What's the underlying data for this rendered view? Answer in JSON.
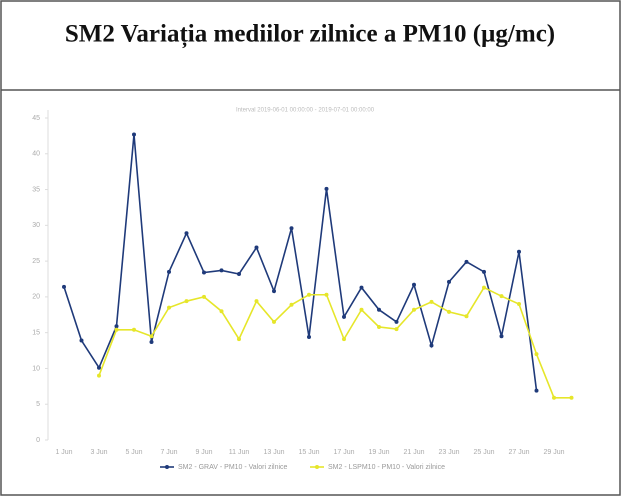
{
  "chart_data": {
    "type": "line",
    "title": "SM2 Variația mediilor zilnice a PM10 (µg/mc)",
    "subtitle": "Interval 2019-06-01 00:00:00 - 2019-07-01 00:00:00",
    "categories": [
      "1 Jun",
      null,
      "3 Jun",
      null,
      "5 Jun",
      null,
      "7 Jun",
      null,
      "9 Jun",
      null,
      "11 Jun",
      null,
      "13 Jun",
      null,
      "15 Jun",
      null,
      "17 Jun",
      null,
      "19 Jun",
      null,
      "21 Jun",
      null,
      "23 Jun",
      null,
      "25 Jun",
      null,
      "27 Jun",
      null,
      "29 Jun",
      null
    ],
    "series": [
      {
        "name": "SM2 - GRAV - PM10 - Valori zilnice",
        "color": "#1f3a7a",
        "values": [
          21.4,
          13.9,
          10.1,
          15.9,
          42.7,
          13.7,
          23.5,
          28.9,
          23.4,
          23.7,
          23.2,
          26.9,
          20.8,
          29.6,
          14.4,
          35.1,
          17.2,
          21.3,
          18.2,
          16.5,
          21.7,
          13.2,
          22.1,
          24.9,
          23.5,
          14.5,
          26.3,
          6.9,
          null,
          null
        ]
      },
      {
        "name": "SM2 - LSPM10 - PM10 - Valori zilnice",
        "color": "#e6e62a",
        "values": [
          null,
          null,
          9.0,
          15.4,
          15.4,
          14.5,
          18.5,
          19.4,
          20.0,
          18.0,
          14.1,
          19.4,
          16.5,
          18.9,
          20.3,
          20.3,
          14.1,
          18.2,
          15.8,
          15.5,
          18.2,
          19.3,
          17.9,
          17.3,
          21.3,
          20.1,
          19.0,
          12.0,
          5.9,
          5.9
        ]
      }
    ],
    "ylim": [
      0,
      45
    ],
    "yticks": [
      0,
      5,
      10,
      15,
      20,
      25,
      30,
      35,
      40,
      45
    ]
  }
}
